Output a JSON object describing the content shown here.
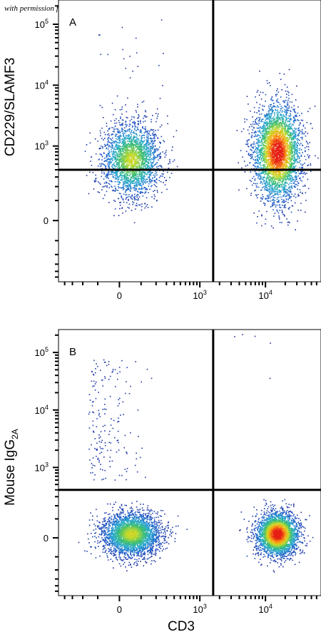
{
  "credit_text": "with permission from R&D Systems",
  "chart_data": [
    {
      "type": "scatter",
      "panel_label": "A",
      "xlabel": "",
      "ylabel": "CD229/SLAMF3",
      "x_scale": "biexponential",
      "y_scale": "biexponential",
      "x_tick_labels": [
        {
          "text": "0",
          "base": "0",
          "exp": ""
        },
        {
          "text": "10^3",
          "base": "10",
          "exp": "3"
        },
        {
          "text": "10^4",
          "base": "10",
          "exp": "4"
        }
      ],
      "y_tick_labels": [
        {
          "text": "0",
          "base": "0",
          "exp": ""
        },
        {
          "text": "10^3",
          "base": "10",
          "exp": "3"
        },
        {
          "text": "10^4",
          "base": "10",
          "exp": "4"
        },
        {
          "text": "10^5",
          "base": "10",
          "exp": "5"
        }
      ],
      "quadrant_gate": {
        "x": 1600,
        "y": 400
      },
      "populations": [
        {
          "x_center": 50,
          "y_center": 600,
          "events": "~2500",
          "peak_density": "medium"
        },
        {
          "x_center": 15000,
          "y_center": 800,
          "events": "~3500",
          "peak_density": "high"
        }
      ],
      "sparse_events_region": "upper-left"
    },
    {
      "type": "scatter",
      "panel_label": "B",
      "xlabel": "CD3",
      "ylabel": "Mouse IgG",
      "ylabel_subscript": "2A",
      "x_scale": "biexponential",
      "y_scale": "biexponential",
      "x_tick_labels": [
        {
          "text": "0",
          "base": "0",
          "exp": ""
        },
        {
          "text": "10^3",
          "base": "10",
          "exp": "3"
        },
        {
          "text": "10^4",
          "base": "10",
          "exp": "4"
        }
      ],
      "y_tick_labels": [
        {
          "text": "0",
          "base": "0",
          "exp": ""
        },
        {
          "text": "10^3",
          "base": "10",
          "exp": "3"
        },
        {
          "text": "10^4",
          "base": "10",
          "exp": "4"
        },
        {
          "text": "10^5",
          "base": "10",
          "exp": "5"
        }
      ],
      "quadrant_gate": {
        "x": 1600,
        "y": 400
      },
      "populations": [
        {
          "x_center": 50,
          "y_center": 20,
          "events": "~3000",
          "peak_density": "medium"
        },
        {
          "x_center": 15000,
          "y_center": 20,
          "events": "~3000",
          "peak_density": "high"
        }
      ],
      "sparse_events_region": "upper-left"
    }
  ]
}
